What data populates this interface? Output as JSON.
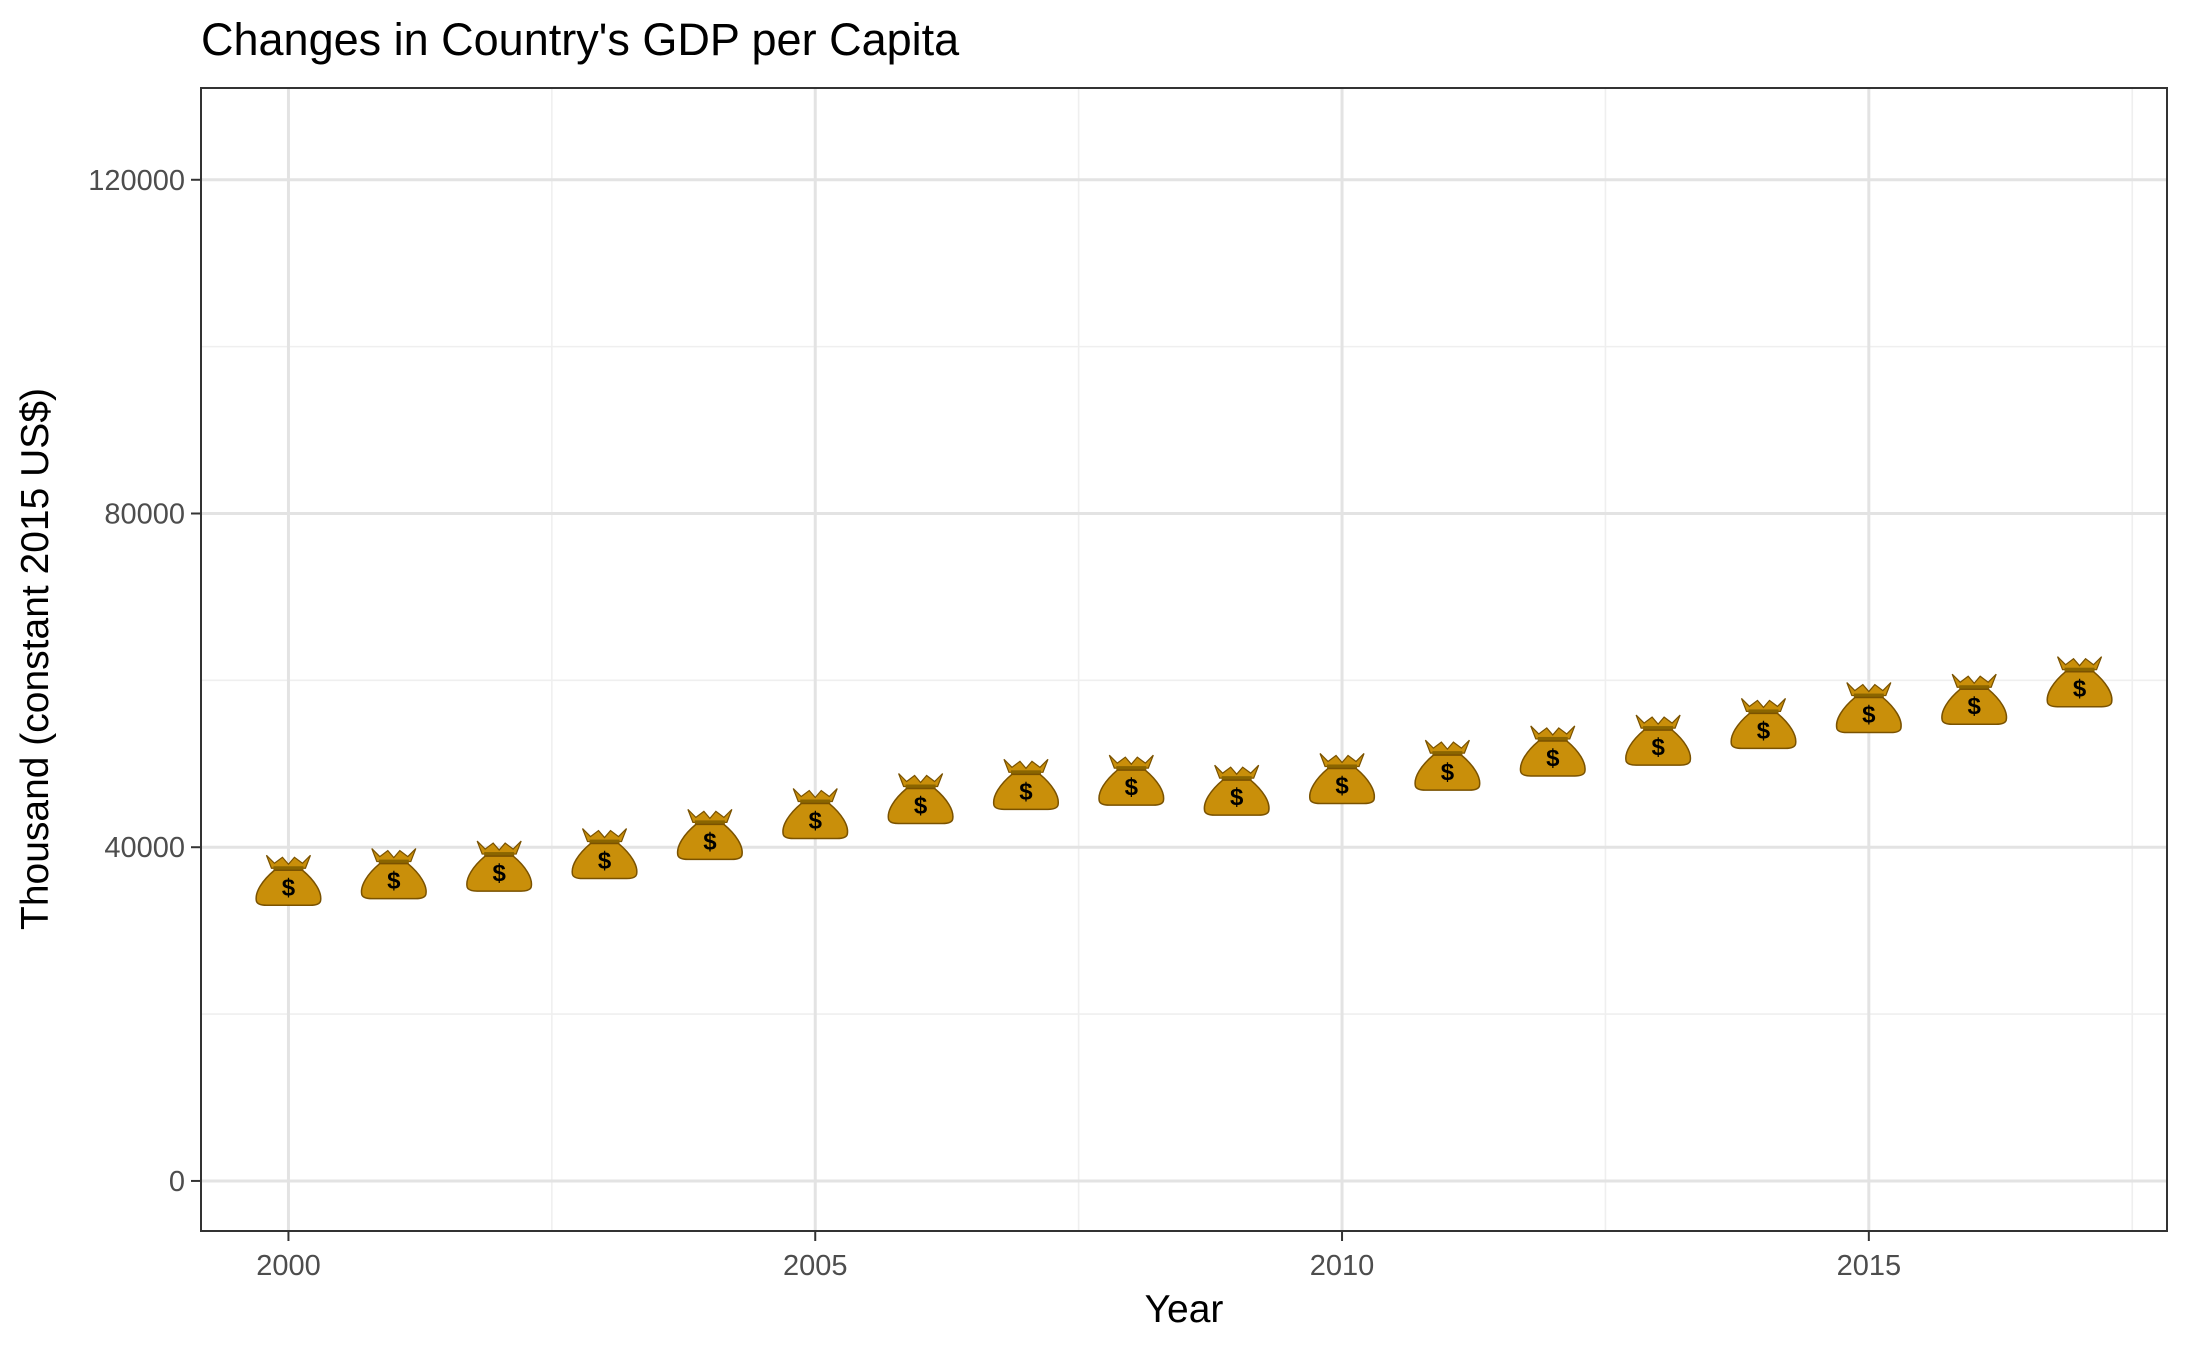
{
  "chart_data": {
    "type": "scatter",
    "title": "Changes in Country's GDP per Capita",
    "xlabel": "Year",
    "ylabel": "Thousand (constant 2015 US$)",
    "x": [
      2000,
      2001,
      2002,
      2003,
      2004,
      2005,
      2006,
      2007,
      2008,
      2009,
      2010,
      2011,
      2012,
      2013,
      2014,
      2015,
      2016,
      2017
    ],
    "values": [
      35800,
      36600,
      37500,
      39000,
      41300,
      43800,
      45600,
      47300,
      47800,
      46600,
      48000,
      49600,
      51300,
      52600,
      54600,
      56500,
      57500,
      59600
    ],
    "xlim": [
      1999.17,
      2017.83
    ],
    "ylim": [
      -6000,
      131000
    ],
    "x_ticks": [
      "2000",
      "2005",
      "2010",
      "2015"
    ],
    "y_ticks": [
      "0",
      "40000",
      "80000",
      "120000"
    ],
    "marker": "money-bag-icon",
    "grid": true,
    "legend": "none",
    "colors": {
      "marker_fill": "#c98f0a",
      "marker_outline": "#7a5200",
      "marker_tie": "#8a6500"
    }
  }
}
